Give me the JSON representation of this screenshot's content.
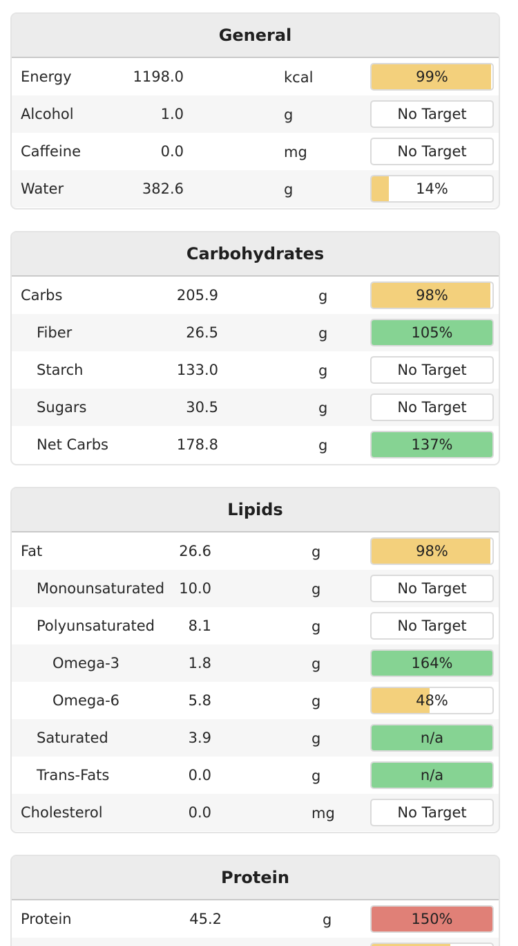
{
  "colors": {
    "under_target": "#f3d07c",
    "met_target": "#86d393",
    "over_limit": "#e08077",
    "no_target": "#ffffff"
  },
  "sections": [
    {
      "title": "General",
      "rows": [
        {
          "name": "Energy",
          "amount": "1198.0",
          "unit": "kcal",
          "label": "99%",
          "fill": 0.99,
          "color": "yellow",
          "indent": 0
        },
        {
          "name": "Alcohol",
          "amount": "1.0",
          "unit": "g",
          "label": "No Target",
          "fill": 0,
          "color": "none",
          "indent": 0
        },
        {
          "name": "Caffeine",
          "amount": "0.0",
          "unit": "mg",
          "label": "No Target",
          "fill": 0,
          "color": "none",
          "indent": 0
        },
        {
          "name": "Water",
          "amount": "382.6",
          "unit": "g",
          "label": "14%",
          "fill": 0.14,
          "color": "yellow",
          "indent": 0
        }
      ]
    },
    {
      "title": "Carbohydrates",
      "rows": [
        {
          "name": "Carbs",
          "amount": "205.9",
          "unit": "g",
          "label": "98%",
          "fill": 0.98,
          "color": "yellow",
          "indent": 0
        },
        {
          "name": "Fiber",
          "amount": "26.5",
          "unit": "g",
          "label": "105%",
          "fill": 1.0,
          "color": "green",
          "indent": 1
        },
        {
          "name": "Starch",
          "amount": "133.0",
          "unit": "g",
          "label": "No Target",
          "fill": 0,
          "color": "none",
          "indent": 1
        },
        {
          "name": "Sugars",
          "amount": "30.5",
          "unit": "g",
          "label": "No Target",
          "fill": 0,
          "color": "none",
          "indent": 1
        },
        {
          "name": "Net Carbs",
          "amount": "178.8",
          "unit": "g",
          "label": "137%",
          "fill": 1.0,
          "color": "green",
          "indent": 1
        }
      ]
    },
    {
      "title": "Lipids",
      "rows": [
        {
          "name": "Fat",
          "amount": "26.6",
          "unit": "g",
          "label": "98%",
          "fill": 0.98,
          "color": "yellow",
          "indent": 0
        },
        {
          "name": "Monounsaturated",
          "amount": "10.0",
          "unit": "g",
          "label": "No Target",
          "fill": 0,
          "color": "none",
          "indent": 1
        },
        {
          "name": "Polyunsaturated",
          "amount": "8.1",
          "unit": "g",
          "label": "No Target",
          "fill": 0,
          "color": "none",
          "indent": 1
        },
        {
          "name": "Omega-3",
          "amount": "1.8",
          "unit": "g",
          "label": "164%",
          "fill": 1.0,
          "color": "green",
          "indent": 2
        },
        {
          "name": "Omega-6",
          "amount": "5.8",
          "unit": "g",
          "label": "48%",
          "fill": 0.48,
          "color": "yellow",
          "indent": 2
        },
        {
          "name": "Saturated",
          "amount": "3.9",
          "unit": "g",
          "label": "n/a",
          "fill": 1.0,
          "color": "green",
          "indent": 1
        },
        {
          "name": "Trans-Fats",
          "amount": "0.0",
          "unit": "g",
          "label": "n/a",
          "fill": 1.0,
          "color": "green",
          "indent": 1
        },
        {
          "name": "Cholesterol",
          "amount": "0.0",
          "unit": "mg",
          "label": "No Target",
          "fill": 0,
          "color": "none",
          "indent": 0
        }
      ]
    },
    {
      "title": "Protein",
      "rows": [
        {
          "name": "Protein",
          "amount": "45.2",
          "unit": "g",
          "label": "150%",
          "fill": 1.0,
          "color": "red",
          "indent": 0
        },
        {
          "name": "",
          "amount": "",
          "unit": "",
          "label": "",
          "fill": 0.65,
          "color": "yellow",
          "indent": 0
        }
      ]
    }
  ]
}
